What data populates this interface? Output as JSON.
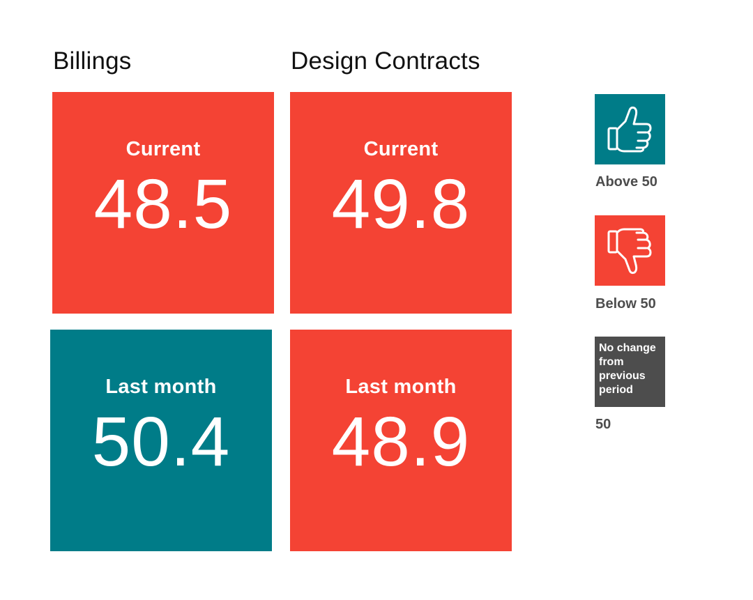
{
  "colors": {
    "below": "#f44334",
    "above": "#007c88",
    "nochange": "#4d4d4d",
    "title": "#111111",
    "legend_text": "#4d4d4d"
  },
  "chart_data": {
    "type": "table",
    "columns": [
      {
        "title": "Billings",
        "tiles": [
          {
            "label": "Current",
            "value": "48.5",
            "status": "below"
          },
          {
            "label": "Last month",
            "value": "50.4",
            "status": "above"
          }
        ]
      },
      {
        "title": "Design Contracts",
        "tiles": [
          {
            "label": "Current",
            "value": "49.8",
            "status": "below"
          },
          {
            "label": "Last month",
            "value": "48.9",
            "status": "below"
          }
        ]
      }
    ],
    "legend": [
      {
        "status": "above",
        "icon": "thumbs-up-icon",
        "label": "Above 50"
      },
      {
        "status": "below",
        "icon": "thumbs-down-icon",
        "label": "Below 50"
      },
      {
        "status": "nochange",
        "box_text": "No change from previous period",
        "label": "50"
      }
    ]
  }
}
